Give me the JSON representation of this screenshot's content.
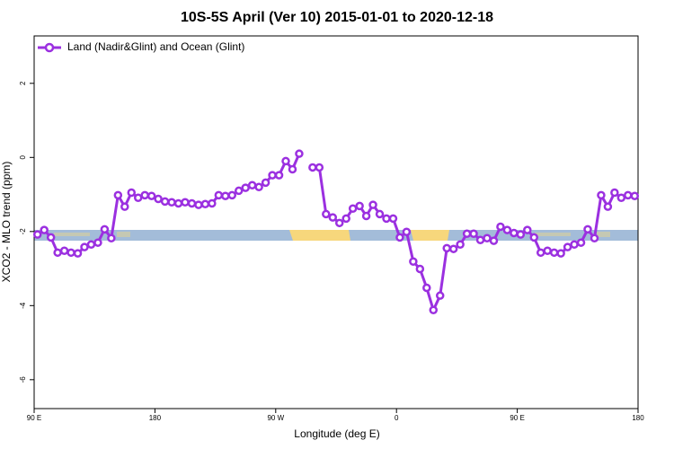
{
  "chart_data": {
    "type": "line",
    "title": "10S-5S April (Ver 10)   2015-01-01 to 2020-12-18",
    "x_label": "Longitude (deg E)",
    "y_label": "XCO2 - MLO trend (ppm)",
    "x": [
      92.5,
      97.5,
      102.5,
      107.5,
      112.5,
      117.5,
      122.5,
      127.5,
      132.5,
      137.5,
      142.5,
      147.5,
      152.5,
      157.5,
      162.5,
      167.5,
      172.5,
      177.5,
      182.5,
      187.5,
      192.5,
      197.5,
      202.5,
      207.5,
      212.5,
      217.5,
      222.5,
      227.5,
      232.5,
      237.5,
      242.5,
      247.5,
      252.5,
      257.5,
      262.5,
      267.5,
      272.5,
      277.5,
      282.5,
      287.5,
      292.5,
      297.5,
      302.5,
      307.5,
      312.5,
      317.5,
      322.5,
      327.5,
      332.5,
      337.5,
      342.5,
      347.5,
      352.5,
      357.5,
      362.5,
      367.5,
      372.5,
      377.5,
      382.5,
      387.5,
      392.5,
      397.5,
      402.5,
      407.5,
      412.5,
      417.5,
      422.5,
      427.5,
      432.5,
      437.5,
      442.5,
      447.5,
      452.5,
      457.5,
      462.5,
      467.5,
      472.5,
      477.5,
      482.5,
      487.5,
      492.5,
      497.5,
      502.5,
      507.5,
      512.5,
      517.5,
      522.5,
      527.5,
      532.5,
      537.5
    ],
    "series": [
      {
        "name": "Land (Nadir&Glint) and Ocean (Glint)",
        "color": "#9b30e0",
        "values": [
          -2.08,
          -1.96,
          -2.16,
          -2.57,
          -2.52,
          -2.57,
          -2.59,
          -2.42,
          -2.35,
          -2.3,
          -1.94,
          -2.18,
          -1.02,
          -1.33,
          -0.95,
          -1.09,
          -1.02,
          -1.04,
          -1.12,
          -1.19,
          -1.21,
          -1.24,
          -1.21,
          -1.24,
          -1.28,
          -1.26,
          -1.24,
          -1.02,
          -1.04,
          -1.02,
          -0.9,
          -0.82,
          -0.75,
          -0.8,
          -0.68,
          -0.48,
          -0.48,
          -0.1,
          -0.32,
          0.1,
          null,
          -0.27,
          -0.27,
          -1.53,
          -1.62,
          -1.77,
          -1.65,
          -1.38,
          -1.31,
          -1.58,
          -1.28,
          -1.53,
          -1.65,
          -1.65,
          -2.16,
          -2.01,
          -2.81,
          -3.01,
          -3.52,
          -4.12,
          -3.73,
          -2.45,
          -2.47,
          -2.35,
          -2.06,
          -2.06,
          -2.23,
          -2.18,
          -2.25,
          -1.87,
          -1.96,
          -2.04,
          -2.08,
          -1.96,
          -2.16,
          -2.57,
          -2.52,
          -2.57,
          -2.59,
          -2.42,
          -2.35,
          -2.3,
          -1.94,
          -2.18,
          -1.02,
          -1.33,
          -0.95,
          -1.09,
          -1.02,
          -1.04
        ]
      }
    ],
    "xlim": [
      90,
      540
    ],
    "xticks": [
      {
        "value": 90,
        "label": "90 E"
      },
      180,
      {
        "value": 270,
        "label": "90 W"
      },
      {
        "value": 360,
        "label": "0"
      },
      {
        "value": 450,
        "label": "90 E"
      },
      {
        "value": 540,
        "label": "180"
      }
    ],
    "ylim": [
      -6.78,
      3.28
    ],
    "yticks": [
      -6,
      -4,
      -2,
      0,
      2
    ],
    "legend": "top-left"
  }
}
